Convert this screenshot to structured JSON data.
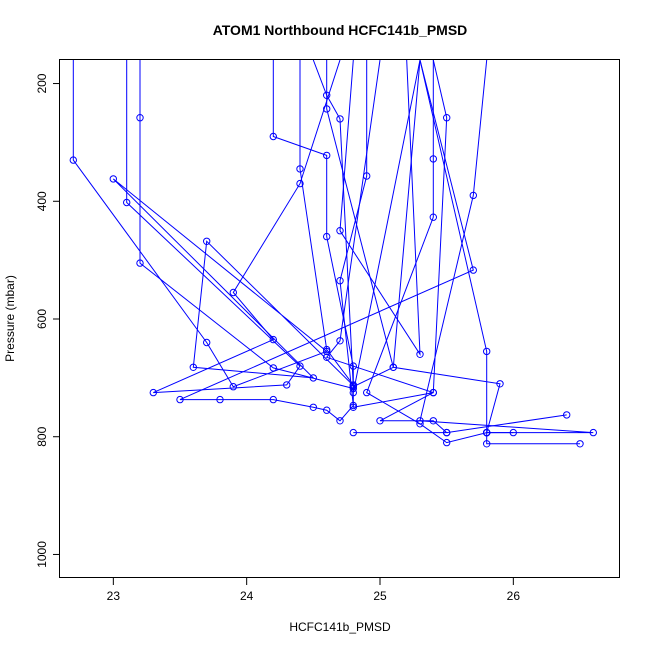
{
  "chart_data": {
    "type": "line",
    "title": "ATOM1 Northbound HCFC141b_PMSD",
    "xlabel": "HCFC141b_PMSD",
    "ylabel": "Pressure (mbar)",
    "xlim": [
      22.6,
      26.8
    ],
    "ylim": [
      1040,
      160
    ],
    "y_inverted": true,
    "x_ticks": [
      23,
      24,
      25,
      26
    ],
    "y_ticks": [
      200,
      400,
      600,
      800,
      1000
    ],
    "grid": false,
    "legend": "none",
    "series_color": "#0000ff",
    "point_style": "open circle",
    "series": [
      {
        "points": [
          [
            22.7,
            160
          ],
          [
            22.7,
            330
          ],
          [
            23.7,
            640
          ],
          [
            23.9,
            715
          ],
          [
            24.6,
            655
          ],
          [
            23.0,
            362
          ],
          [
            24.5,
            700
          ],
          [
            23.6,
            682
          ],
          [
            23.7,
            468
          ],
          [
            24.8,
            713
          ]
        ]
      },
      {
        "points": [
          [
            23.1,
            160
          ],
          [
            23.1,
            402
          ],
          [
            24.4,
            680
          ],
          [
            24.3,
            712
          ],
          [
            23.3,
            725
          ],
          [
            24.2,
            635
          ],
          [
            23.9,
            555
          ],
          [
            24.4,
            370
          ],
          [
            24.7,
            160
          ]
        ]
      },
      {
        "points": [
          [
            23.2,
            160
          ],
          [
            23.2,
            258
          ],
          [
            23.2,
            505
          ],
          [
            24.2,
            683
          ],
          [
            24.8,
            718
          ]
        ]
      },
      {
        "points": [
          [
            24.2,
            160
          ],
          [
            24.2,
            290
          ],
          [
            24.6,
            322
          ],
          [
            24.6,
            460
          ],
          [
            24.8,
            680
          ],
          [
            24.8,
            750
          ],
          [
            25.4,
            725
          ],
          [
            25.0,
            773
          ],
          [
            25.4,
            773
          ],
          [
            25.5,
            793
          ],
          [
            24.8,
            793
          ],
          [
            25.5,
            793
          ],
          [
            26.4,
            763
          ]
        ]
      },
      {
        "points": [
          [
            24.4,
            160
          ],
          [
            24.4,
            345
          ],
          [
            24.6,
            652
          ],
          [
            24.8,
            712
          ],
          [
            24.8,
            725
          ],
          [
            25.3,
            160
          ]
        ]
      },
      {
        "points": [
          [
            24.5,
            160
          ],
          [
            24.6,
            220
          ],
          [
            24.7,
            260
          ],
          [
            24.8,
            715
          ],
          [
            25.1,
            682
          ],
          [
            25.3,
            160
          ]
        ]
      },
      {
        "points": [
          [
            24.6,
            160
          ],
          [
            24.6,
            243
          ],
          [
            25.1,
            682
          ],
          [
            25.9,
            710
          ],
          [
            25.8,
            793
          ],
          [
            26.0,
            793
          ],
          [
            25.8,
            793
          ],
          [
            25.8,
            812
          ],
          [
            26.5,
            812
          ]
        ]
      },
      {
        "points": [
          [
            24.8,
            160
          ],
          [
            24.7,
            450
          ],
          [
            25.3,
            660
          ],
          [
            25.2,
            160
          ]
        ]
      },
      {
        "points": [
          [
            24.9,
            160
          ],
          [
            24.9,
            357
          ],
          [
            24.7,
            535
          ],
          [
            24.8,
            747
          ],
          [
            24.7,
            773
          ],
          [
            24.6,
            755
          ],
          [
            24.5,
            750
          ],
          [
            24.2,
            737
          ],
          [
            23.8,
            737
          ],
          [
            23.5,
            737
          ],
          [
            25.7,
            517
          ],
          [
            25.3,
            160
          ]
        ]
      },
      {
        "points": [
          [
            25.0,
            160
          ],
          [
            24.7,
            637
          ],
          [
            24.6,
            665
          ],
          [
            25.4,
            725
          ],
          [
            25.5,
            258
          ],
          [
            25.4,
            160
          ]
        ]
      },
      {
        "points": [
          [
            25.4,
            160
          ],
          [
            25.4,
            328
          ],
          [
            25.4,
            427
          ],
          [
            24.9,
            725
          ],
          [
            25.3,
            778
          ],
          [
            25.5,
            810
          ],
          [
            25.8,
            793
          ],
          [
            26.6,
            793
          ],
          [
            25.3,
            773
          ],
          [
            25.7,
            390
          ],
          [
            25.8,
            160
          ]
        ]
      },
      {
        "points": [
          [
            25.3,
            160
          ],
          [
            25.8,
            655
          ],
          [
            25.8,
            793
          ]
        ]
      }
    ]
  }
}
